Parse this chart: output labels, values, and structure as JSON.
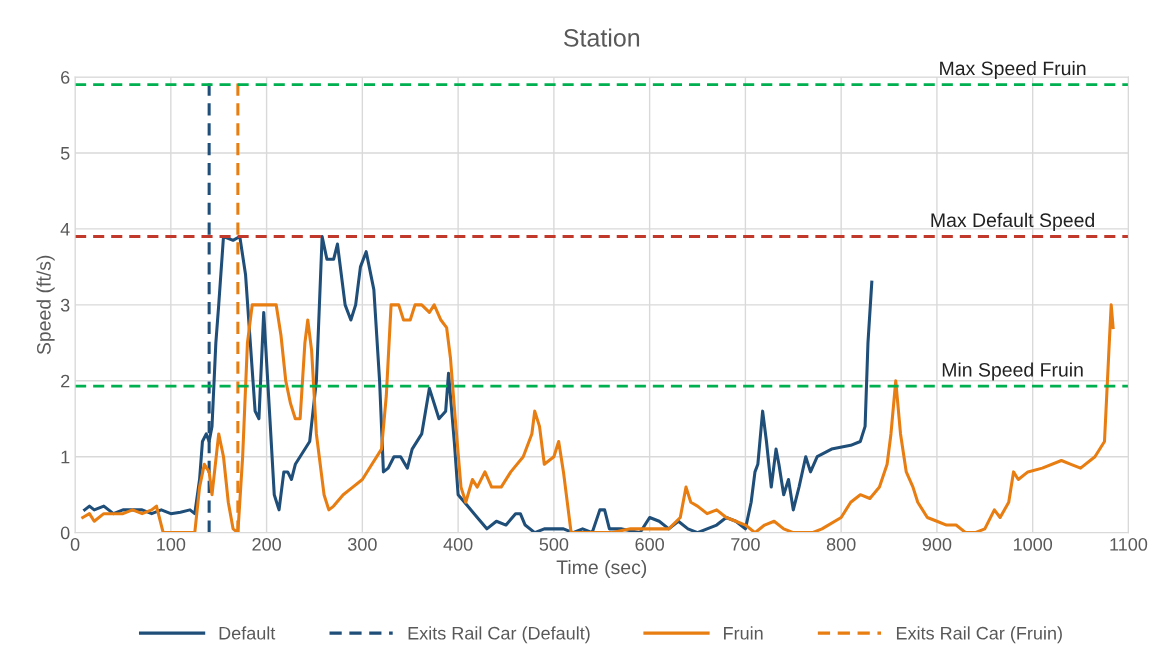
{
  "chart_data": {
    "type": "line",
    "title": "Station",
    "xlabel": "Time (sec)",
    "ylabel": "Speed (ft/s)",
    "xlim": [
      0,
      1100
    ],
    "ylim": [
      0,
      6
    ],
    "xticks": [
      0,
      100,
      200,
      300,
      400,
      500,
      600,
      700,
      800,
      900,
      1000,
      1100
    ],
    "yticks": [
      0,
      1,
      2,
      3,
      4,
      5,
      6
    ],
    "grid": true,
    "legend": "bottom",
    "marker": "none",
    "series": [
      {
        "name": "Default",
        "color": "#1f4e79",
        "line_style": "solid",
        "x": [
          10,
          15,
          20,
          30,
          40,
          50,
          60,
          70,
          80,
          90,
          100,
          110,
          120,
          125,
          130,
          133,
          137,
          140,
          143,
          147,
          150,
          155,
          165,
          172,
          178,
          183,
          188,
          192,
          197,
          203,
          208,
          213,
          218,
          222,
          226,
          230,
          245,
          252,
          258,
          263,
          270,
          274,
          282,
          288,
          293,
          298,
          304,
          312,
          318,
          322,
          327,
          333,
          340,
          347,
          352,
          362,
          370,
          375,
          380,
          387,
          390,
          396,
          400,
          410,
          420,
          430,
          440,
          450,
          460,
          465,
          470,
          480,
          490,
          500,
          510,
          520,
          530,
          540,
          548,
          553,
          558,
          570,
          590,
          600,
          610,
          620,
          630,
          640,
          650,
          660,
          670,
          680,
          690,
          700,
          706,
          710,
          713,
          718,
          722,
          727,
          732,
          735,
          740,
          745,
          750,
          756,
          763,
          768,
          775,
          790,
          810,
          820,
          825,
          828,
          832
        ],
        "values": [
          0.3,
          0.35,
          0.3,
          0.35,
          0.25,
          0.3,
          0.3,
          0.3,
          0.25,
          0.3,
          0.25,
          0.27,
          0.3,
          0.25,
          0.7,
          1.2,
          1.3,
          1.2,
          1.4,
          2.5,
          3.0,
          3.9,
          3.85,
          3.9,
          3.4,
          2.5,
          1.6,
          1.5,
          2.9,
          1.6,
          0.5,
          0.3,
          0.8,
          0.8,
          0.7,
          0.9,
          1.2,
          2.0,
          3.9,
          3.6,
          3.6,
          3.8,
          3.0,
          2.8,
          3.0,
          3.5,
          3.7,
          3.2,
          2.0,
          0.8,
          0.85,
          1.0,
          1.0,
          0.85,
          1.1,
          1.3,
          1.9,
          1.7,
          1.5,
          1.6,
          2.1,
          1.2,
          0.5,
          0.35,
          0.2,
          0.05,
          0.15,
          0.1,
          0.25,
          0.25,
          0.1,
          0.0,
          0.05,
          0.05,
          0.05,
          0.0,
          0.05,
          0.0,
          0.3,
          0.3,
          0.05,
          0.05,
          0.0,
          0.2,
          0.15,
          0.05,
          0.15,
          0.05,
          0.0,
          0.05,
          0.1,
          0.2,
          0.15,
          0.05,
          0.4,
          0.8,
          0.9,
          1.6,
          1.2,
          0.6,
          1.1,
          0.9,
          0.5,
          0.7,
          0.3,
          0.6,
          1.0,
          0.8,
          1.0,
          1.1,
          1.15,
          1.2,
          1.4,
          2.5,
          3.3
        ]
      },
      {
        "name": "Exits Rail Car (Default)",
        "color": "#1f4e79",
        "line_style": "dashed",
        "x": [
          140,
          140
        ],
        "values": [
          0,
          6
        ]
      },
      {
        "name": "Fruin",
        "color": "#e87d12",
        "line_style": "solid",
        "x": [
          8,
          15,
          20,
          30,
          40,
          50,
          60,
          70,
          80,
          85,
          92,
          100,
          120,
          125,
          130,
          135,
          140,
          143,
          150,
          155,
          160,
          165,
          170,
          175,
          180,
          185,
          200,
          210,
          215,
          220,
          225,
          230,
          235,
          240,
          243,
          247,
          252,
          260,
          265,
          270,
          280,
          290,
          300,
          310,
          320,
          325,
          330,
          338,
          343,
          350,
          355,
          362,
          370,
          375,
          382,
          388,
          392,
          397,
          403,
          408,
          415,
          420,
          428,
          435,
          445,
          455,
          468,
          477,
          480,
          485,
          490,
          500,
          505,
          510,
          518,
          540,
          560,
          580,
          600,
          620,
          632,
          638,
          643,
          650,
          660,
          670,
          680,
          690,
          700,
          710,
          720,
          730,
          740,
          750,
          770,
          780,
          800,
          810,
          820,
          830,
          840,
          848,
          852,
          857,
          862,
          868,
          875,
          880,
          890,
          900,
          910,
          920,
          930,
          940,
          950,
          960,
          966,
          975,
          980,
          985,
          995,
          1010,
          1030,
          1040,
          1050,
          1065,
          1075,
          1080,
          1082,
          1084
        ],
        "values": [
          0.2,
          0.25,
          0.15,
          0.25,
          0.25,
          0.25,
          0.3,
          0.25,
          0.3,
          0.35,
          0.0,
          0.0,
          0.0,
          0.0,
          0.6,
          0.9,
          0.8,
          0.5,
          1.3,
          1.0,
          0.4,
          0.05,
          0.0,
          1.0,
          2.5,
          3.0,
          3.0,
          3.0,
          2.6,
          2.0,
          1.7,
          1.5,
          1.5,
          2.5,
          2.8,
          2.4,
          1.3,
          0.5,
          0.3,
          0.35,
          0.5,
          0.6,
          0.7,
          0.9,
          1.1,
          1.8,
          3.0,
          3.0,
          2.8,
          2.8,
          3.0,
          3.0,
          2.9,
          3.0,
          2.8,
          2.7,
          2.3,
          1.5,
          0.6,
          0.4,
          0.7,
          0.6,
          0.8,
          0.6,
          0.6,
          0.8,
          1.0,
          1.3,
          1.6,
          1.4,
          0.9,
          1.0,
          1.2,
          0.8,
          0.0,
          0.0,
          0.0,
          0.05,
          0.05,
          0.05,
          0.2,
          0.6,
          0.4,
          0.35,
          0.25,
          0.3,
          0.2,
          0.15,
          0.1,
          0.0,
          0.1,
          0.15,
          0.05,
          0.0,
          0.0,
          0.05,
          0.2,
          0.4,
          0.5,
          0.45,
          0.6,
          0.9,
          1.3,
          2.0,
          1.3,
          0.8,
          0.6,
          0.4,
          0.2,
          0.15,
          0.1,
          0.1,
          0.0,
          0.0,
          0.05,
          0.3,
          0.2,
          0.4,
          0.8,
          0.7,
          0.8,
          0.85,
          0.95,
          0.9,
          0.85,
          1.0,
          1.2,
          2.5,
          3.0,
          2.7
        ]
      },
      {
        "name": "Exits Rail Car (Fruin)",
        "color": "#e87d12",
        "line_style": "dashed",
        "x": [
          170,
          170
        ],
        "values": [
          0,
          6
        ]
      }
    ],
    "ref_lines": [
      {
        "axis": "y",
        "value": 5.9,
        "label": "Max Speed Fruin",
        "color": "#00b050",
        "line_style": "dashed"
      },
      {
        "axis": "y",
        "value": 3.9,
        "label": "Max Default Speed",
        "color": "#c0392b",
        "line_style": "dashed"
      },
      {
        "axis": "y",
        "value": 1.93,
        "label": "Min Speed Fruin",
        "color": "#00b050",
        "line_style": "dashed"
      }
    ]
  }
}
